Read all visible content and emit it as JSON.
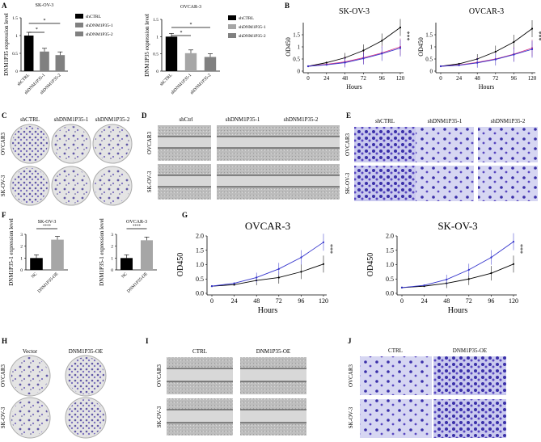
{
  "panel_letters": [
    "A",
    "B",
    "C",
    "D",
    "E",
    "F",
    "G",
    "H",
    "I",
    "J"
  ],
  "sig": {
    "single": "*",
    "triple": "***",
    "quad": "****"
  },
  "photo_labels": {
    "C": {
      "cols": [
        "shCTRL",
        "shDNM1P35-1",
        "shDNM1P35-2"
      ],
      "rows": [
        "OVCAR3",
        "SK-OV-3"
      ]
    },
    "D": {
      "cols": [
        "shCtrl",
        "shDNM1P35-1",
        "shDNM1P35-2"
      ],
      "rows": [
        "OVCAR3",
        "SK-OV-3"
      ]
    },
    "E": {
      "cols": [
        "shCTRL",
        "shDNM1P35-1",
        "shDNM1P35-2"
      ],
      "rows": [
        "OVCAR3",
        "SK-OV-3"
      ]
    },
    "H": {
      "cols": [
        "Vector",
        "DNM1P35-OE"
      ],
      "rows": [
        "OVCAR3",
        "SK-OV-3"
      ]
    },
    "I": {
      "cols": [
        "CTRL",
        "DNM1P35-OE"
      ],
      "rows": [
        "OVCAR3",
        "SK-OV-3"
      ]
    },
    "J": {
      "cols": [
        "CTRL",
        "DNM1P35-OE"
      ],
      "rows": [
        "OVCAR3",
        "SK-OV-3"
      ]
    }
  },
  "colors": {
    "black": "#000000",
    "grey1": "#a6a6a6",
    "grey2": "#808080",
    "pink": "#d63384",
    "blue": "#3333cc",
    "purple": "#5a3fa8"
  },
  "chart_data": [
    {
      "id": "A1",
      "type": "bar",
      "title": "SK-OV-3",
      "ylabel": "DNM1P35 expression level",
      "categories": [
        "shCTRL",
        "shDNM1P35-1",
        "shDNM1P35-2"
      ],
      "values": [
        1.0,
        0.55,
        0.45
      ],
      "legend": [
        "shCTRL",
        "shDNM1P35-1",
        "shDNM1P35-2"
      ],
      "ylim": [
        0,
        1.5
      ],
      "yticks": [
        0,
        0.5,
        1,
        1.5
      ]
    },
    {
      "id": "A2",
      "type": "bar",
      "title": "OVCAR-3",
      "ylabel": "DNM1P35 expression level",
      "categories": [
        "shCTRL",
        "shDNM1P35-1",
        "shDNM1P35-2"
      ],
      "values": [
        1.0,
        0.52,
        0.41
      ],
      "legend": [
        "shCTRL",
        "shDNM1P35-1",
        "shDNM1P35-2"
      ],
      "ylim": [
        0,
        1.5
      ],
      "yticks": [
        0,
        0.5,
        1,
        1.5
      ]
    },
    {
      "id": "B1",
      "type": "line",
      "title": "SK-OV-3",
      "xlabel": "Hours",
      "ylabel": "OD450",
      "x": [
        0,
        24,
        48,
        72,
        96,
        120
      ],
      "ylim": [
        0,
        2
      ],
      "yticks": [
        0,
        0.5,
        1,
        1.5
      ],
      "series": [
        {
          "values": [
            0.2,
            0.35,
            0.55,
            0.85,
            1.25,
            1.8
          ]
        },
        {
          "values": [
            0.2,
            0.28,
            0.38,
            0.55,
            0.75,
            1.0
          ]
        },
        {
          "values": [
            0.2,
            0.26,
            0.35,
            0.52,
            0.72,
            0.95
          ]
        }
      ]
    },
    {
      "id": "B2",
      "type": "line",
      "title": "OVCAR-3",
      "xlabel": "Hours",
      "ylabel": "OD450",
      "x": [
        0,
        24,
        48,
        72,
        96,
        120
      ],
      "ylim": [
        0,
        2
      ],
      "yticks": [
        0,
        0.5,
        1,
        1.5
      ],
      "series": [
        {
          "values": [
            0.2,
            0.3,
            0.5,
            0.8,
            1.2,
            1.75
          ]
        },
        {
          "values": [
            0.2,
            0.25,
            0.36,
            0.5,
            0.7,
            0.95
          ]
        },
        {
          "values": [
            0.2,
            0.24,
            0.34,
            0.48,
            0.68,
            0.9
          ]
        }
      ]
    },
    {
      "id": "F1",
      "type": "bar",
      "title": "SK-OV-3",
      "ylabel": "DNM1P35-1 expression level",
      "categories": [
        "NC",
        "DNM1P35-OE"
      ],
      "values": [
        1.0,
        2.55
      ],
      "ylim": [
        0,
        3
      ],
      "yticks": [
        0,
        1,
        2,
        3
      ]
    },
    {
      "id": "F2",
      "type": "bar",
      "title": "OVCAR-3",
      "ylabel": "DNM1P35-1 expression level",
      "categories": [
        "NC",
        "DNM1P35-OE"
      ],
      "values": [
        1.0,
        2.5
      ],
      "ylim": [
        0,
        3
      ],
      "yticks": [
        0,
        1,
        2,
        3
      ]
    },
    {
      "id": "G1",
      "type": "line",
      "title": "OVCAR-3",
      "xlabel": "Hours",
      "ylabel": "OD450",
      "x": [
        0,
        24,
        48,
        72,
        96,
        120
      ],
      "ylim": [
        0,
        2
      ],
      "yticks": [
        0.0,
        0.5,
        1.0,
        1.5,
        2.0
      ],
      "series": [
        {
          "values": [
            0.25,
            0.3,
            0.45,
            0.55,
            0.75,
            1.02
          ]
        },
        {
          "values": [
            0.25,
            0.35,
            0.55,
            0.85,
            1.25,
            1.78
          ]
        }
      ]
    },
    {
      "id": "G2",
      "type": "line",
      "title": "SK-OV-3",
      "xlabel": "Hours",
      "ylabel": "OD450",
      "x": [
        0,
        24,
        48,
        72,
        96,
        120
      ],
      "ylim": [
        0,
        2
      ],
      "yticks": [
        0.0,
        0.5,
        1.0,
        1.5,
        2.0
      ],
      "series": [
        {
          "values": [
            0.2,
            0.25,
            0.35,
            0.5,
            0.7,
            1.02
          ]
        },
        {
          "values": [
            0.2,
            0.28,
            0.48,
            0.82,
            1.25,
            1.8
          ]
        }
      ]
    }
  ]
}
